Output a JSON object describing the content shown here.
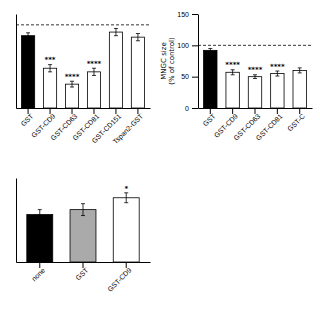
{
  "chart_data": [
    {
      "type": "bar",
      "categories": [
        "GST",
        "GST-CD9",
        "GST-CD63",
        "GST-CD81",
        "GST-CD151",
        "Tspan2-GST"
      ],
      "values": [
        100,
        55,
        33,
        50,
        105,
        98
      ],
      "errors": [
        4,
        5,
        4,
        5,
        5,
        5
      ],
      "colors": [
        "#000000",
        "#ffffff",
        "#ffffff",
        "#ffffff",
        "#ffffff",
        "#ffffff"
      ],
      "stars": [
        null,
        "***",
        "****",
        "****",
        null,
        null
      ],
      "ylim": [
        0,
        130
      ],
      "dashed_line": 115,
      "tick_labels": "x"
    },
    {
      "type": "bar",
      "categories": [
        "GST",
        "GST-CD9",
        "GST-CD63",
        "GST-CD81",
        "GST-C"
      ],
      "values": [
        92,
        57,
        50,
        55,
        60
      ],
      "errors": [
        3,
        4,
        3,
        4,
        4
      ],
      "colors": [
        "#000000",
        "#ffffff",
        "#ffffff",
        "#ffffff",
        "#ffffff"
      ],
      "stars": [
        null,
        "****",
        "****",
        "****",
        null
      ],
      "ylim": [
        0,
        150
      ],
      "yticks": [
        0,
        50,
        100,
        150
      ],
      "dashed_line": 100,
      "ylabel": "MNGC size\n(% of control)"
    },
    {
      "type": "bar",
      "categories": [
        "none",
        "GST",
        "GST-CD9"
      ],
      "values": [
        48,
        53,
        65
      ],
      "errors": [
        5,
        6,
        5
      ],
      "colors": [
        "#000000",
        "#aaaaaa",
        "#ffffff"
      ],
      "stars": [
        null,
        null,
        "*"
      ],
      "ylim": [
        0,
        85
      ],
      "tick_labels": "x"
    }
  ]
}
